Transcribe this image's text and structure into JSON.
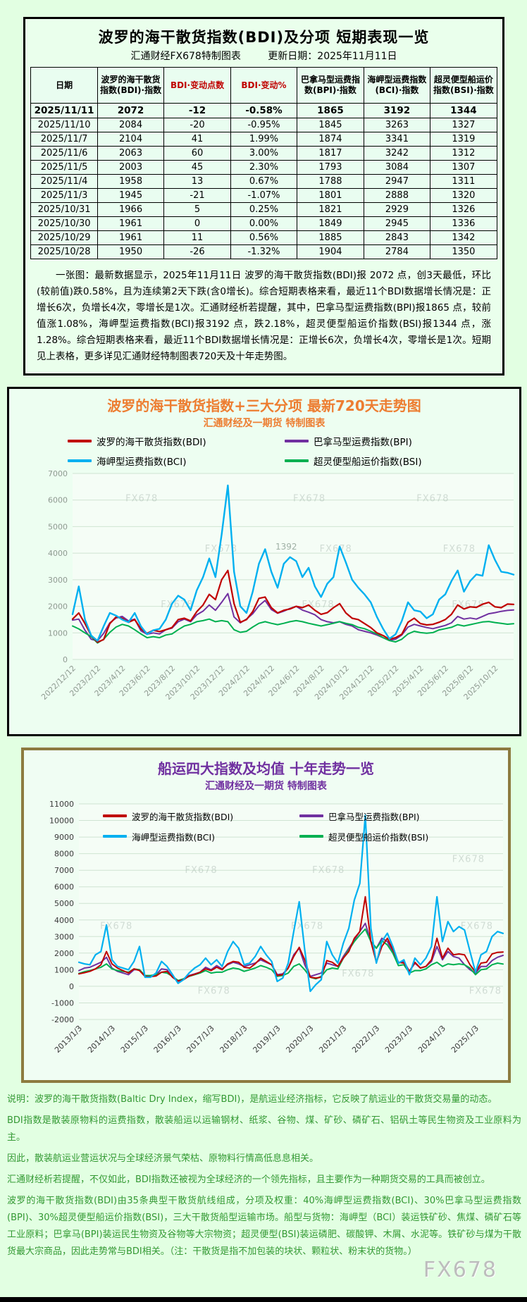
{
  "page": {
    "watermark": "FX678"
  },
  "colors": {
    "bdi": "#c00000",
    "bpi": "#7030a0",
    "bci": "#00b0f0",
    "bsi": "#00b050",
    "chart1_title": "#ed7d31",
    "chart2_title": "#7030a0",
    "note_text": "#339933",
    "header_highlight": "#86f7b9",
    "header_red": "#c00000"
  },
  "report": {
    "title": "波罗的海干散货指数(BDI)及分项 短期表现一览",
    "source": "汇通财经FX678特制图表",
    "update_date": "更新日期：2025年11月11日",
    "summary": "一张图：最新数据显示，2025年11月11日 波罗的海干散货指数(BDI)报 2072 点，创3天最低，环比(较前值)跌0.58%，且为连续第2天下跌(含0增长)。综合短期表格来看，最近11个BDI数据增长情况是：正增长6次，负增长4次，零增长是1次。汇通财经析若提醒，其中，巴拿马型运费指数(BPI)报1865 点，较前值涨1.08%，海岬型运费指数(BCI)报3192 点，跌2.18%，超灵便型船运价指数(BSI)报1344 点，涨1.28%。综合短期表格来看，最近11个BDI数据增长情况是：正增长6次，负增长4次，零增长是1次。短期见上表格，更多详见汇通财经特制图表720天及十年走势图。"
  },
  "table": {
    "columns": [
      "日期",
      "波罗的海干散货指数(BDI)·指数",
      "BDI·变动点数",
      "BDI·变动%",
      "巴拿马型运费指数(BPI)·指数",
      "海岬型运费指数(BCI)·指数",
      "超灵便型船运价指数(BSI)·指数"
    ],
    "rows": [
      [
        "2025/11/11",
        "2072",
        "-12",
        "-0.58%",
        "1865",
        "3192",
        "1344"
      ],
      [
        "2025/11/10",
        "2084",
        "-20",
        "-0.95%",
        "1845",
        "3263",
        "1327"
      ],
      [
        "2025/11/7",
        "2104",
        "41",
        "1.99%",
        "1874",
        "3341",
        "1319"
      ],
      [
        "2025/11/6",
        "2063",
        "60",
        "3.00%",
        "1817",
        "3242",
        "1312"
      ],
      [
        "2025/11/5",
        "2003",
        "45",
        "2.30%",
        "1793",
        "3084",
        "1307"
      ],
      [
        "2025/11/4",
        "1958",
        "13",
        "0.67%",
        "1788",
        "2947",
        "1311"
      ],
      [
        "2025/11/3",
        "1945",
        "-21",
        "-1.07%",
        "1801",
        "2888",
        "1320"
      ],
      [
        "2025/10/31",
        "1966",
        "5",
        "0.25%",
        "1821",
        "2929",
        "1326"
      ],
      [
        "2025/10/30",
        "1961",
        "0",
        "0.00%",
        "1849",
        "2945",
        "1336"
      ],
      [
        "2025/10/29",
        "1961",
        "11",
        "0.56%",
        "1885",
        "2843",
        "1342"
      ],
      [
        "2025/10/28",
        "1950",
        "-26",
        "-1.32%",
        "1904",
        "2784",
        "1350"
      ]
    ]
  },
  "notes": {
    "lines": [
      "说明：波罗的海干散货指数(Baltic Dry Index，缩写BDI)，是航运业经济指标，它反映了航运业的干散货交易量的动态。",
      "BDI指数是散装原物料的运费指数，散装船运以运输钢材、纸浆、谷物、煤、矿砂、磷矿石、铝矾土等民生物资及工业原料为主。",
      "因此，散装航运业营运状况与全球经济景气荣枯、原物料行情高低息息相关。",
      "汇通财经析若提醒，不仅如此，BDI指数还被视为全球经济的一个领先指标，且主要作为一种期货交易的工具而被创立。",
      "波罗的海干散货指数(BDI)由35条典型干散货航线组成，分项及权重：40%海岬型运费指数(BCI)、30%巴拿马型运费指数(BPI)、30%超灵便型船运价指数(BSI)，三大干散货船型运输市场。船型与货物：海岬型（BCI）装运铁矿砂、焦煤、磷矿石等工业原料；巴拿马(BPI)装运民生物资及谷物等大宗物资；超灵便型(BSI)装运磷肥、碳酸钾、木屑、水泥等。铁矿砂与煤为干散货最大宗商品，因此走势常与BDI相关。（注：干散货是指不加包装的块状、颗粒状、粉末状的货物。）"
    ]
  },
  "chart_data": [
    {
      "type": "line",
      "title": "波罗的海干散货指数+三大分项  最新720天走势图",
      "subtitle": "汇通财经及一期货 特制图表",
      "ylim": [
        0,
        7000
      ],
      "yticks": [
        0,
        1000,
        2000,
        3000,
        4000,
        5000,
        6000,
        7000
      ],
      "grid": true,
      "legend_position": "top",
      "tick_color": "#8f9a91",
      "x_labels": [
        "2022/12/12",
        "2023/2/12",
        "2023/4/12",
        "2023/6/12",
        "2023/8/12",
        "2023/10/12",
        "2023/12/12",
        "2024/2/12",
        "2024/4/12",
        "2024/6/12",
        "2024/8/12",
        "2024/10/12",
        "2024/12/12",
        "2025/2/12",
        "2025/4/12",
        "2025/6/12",
        "2025/8/12",
        "2025/10/12"
      ],
      "points_per_label": 4,
      "watermark": "FX678",
      "watermark_positions": [
        [
          0.12,
          0.15
        ],
        [
          0.5,
          0.15
        ],
        [
          0.78,
          0.15
        ],
        [
          0.3,
          0.42
        ],
        [
          0.56,
          0.42
        ],
        [
          0.84,
          0.42
        ],
        [
          0.2,
          0.72
        ],
        [
          0.52,
          0.72
        ],
        [
          0.86,
          0.72
        ]
      ],
      "annotations": [
        {
          "text": "1392",
          "fx": 0.46,
          "fy": 0.41
        }
      ],
      "draw_order": [
        1,
        3,
        0,
        2
      ],
      "series": [
        {
          "name": "波罗的海干散货指数(BDI)",
          "color": "#c00000",
          "width": 2.2,
          "values": [
            1520,
            1750,
            1350,
            900,
            650,
            750,
            1350,
            1600,
            1550,
            1400,
            1500,
            1150,
            980,
            1100,
            1050,
            1120,
            1200,
            1500,
            1550,
            1450,
            1800,
            2050,
            2450,
            2250,
            3000,
            3350,
            2100,
            1400,
            1500,
            1800,
            2300,
            2350,
            1950,
            1750,
            1850,
            1900,
            2000,
            1950,
            2050,
            1850,
            1700,
            1760,
            1950,
            2100,
            1750,
            1550,
            1500,
            1350,
            1200,
            1000,
            900,
            760,
            820,
            950,
            1400,
            1550,
            1350,
            1300,
            1320,
            1400,
            1500,
            1700,
            2050,
            1900,
            1980,
            1960,
            2080,
            2150,
            1980,
            1950,
            2084,
            2072
          ]
        },
        {
          "name": "巴拿马型运费指数(BPI)",
          "color": "#7030a0",
          "width": 2,
          "values": [
            1480,
            1520,
            1100,
            760,
            700,
            980,
            1380,
            1560,
            1620,
            1450,
            1520,
            1080,
            950,
            1000,
            960,
            1120,
            1180,
            1420,
            1520,
            1420,
            1680,
            1820,
            2050,
            1850,
            2150,
            2480,
            1600,
            1380,
            1520,
            1720,
            2020,
            2220,
            1880,
            1740,
            1820,
            1920,
            2000,
            1860,
            1780,
            1680,
            1500,
            1420,
            1380,
            1420,
            1320,
            1260,
            1120,
            1060,
            1000,
            920,
            820,
            720,
            760,
            920,
            1220,
            1320,
            1260,
            1200,
            1160,
            1220,
            1280,
            1380,
            1620,
            1520,
            1560,
            1520,
            1620,
            1720,
            1760,
            1810,
            1845,
            1865
          ]
        },
        {
          "name": "海岬型运费指数(BCI)",
          "color": "#00b0f0",
          "width": 2.4,
          "values": [
            1700,
            2750,
            1500,
            900,
            700,
            1250,
            1750,
            1650,
            1500,
            1400,
            1750,
            1250,
            950,
            1100,
            1150,
            1500,
            2100,
            2400,
            2250,
            1850,
            2600,
            3100,
            3800,
            3100,
            4700,
            6550,
            3300,
            2000,
            1750,
            2550,
            3600,
            4150,
            3300,
            2700,
            3600,
            3850,
            3700,
            3100,
            3450,
            2750,
            2350,
            2850,
            3100,
            4250,
            3650,
            3000,
            2700,
            2450,
            2150,
            1600,
            1150,
            780,
            950,
            1450,
            2150,
            1850,
            1800,
            1550,
            1700,
            2250,
            2450,
            2950,
            3350,
            2550,
            2950,
            3200,
            3150,
            4300,
            3750,
            3300,
            3263,
            3192
          ]
        },
        {
          "name": "超灵便型船运价指数(BSI)",
          "color": "#00b050",
          "width": 2,
          "values": [
            1260,
            1150,
            1000,
            860,
            620,
            760,
            1020,
            1220,
            1320,
            1260,
            1120,
            960,
            820,
            860,
            820,
            920,
            960,
            1120,
            1260,
            1320,
            1420,
            1460,
            1520,
            1420,
            1460,
            1420,
            1120,
            1020,
            1060,
            1220,
            1360,
            1420,
            1360,
            1310,
            1360,
            1420,
            1460,
            1420,
            1360,
            1310,
            1260,
            1310,
            1360,
            1420,
            1360,
            1310,
            1210,
            1160,
            1060,
            960,
            820,
            710,
            660,
            760,
            960,
            1060,
            1010,
            990,
            1010,
            1110,
            1160,
            1210,
            1310,
            1260,
            1310,
            1360,
            1410,
            1430,
            1390,
            1360,
            1327,
            1344
          ]
        }
      ]
    },
    {
      "type": "line",
      "title": "船运四大指数及均值 十年走势一览",
      "subtitle": "汇通财经及一期货 特制图表",
      "ylim": [
        -2000,
        11000
      ],
      "yticks": [
        -2000,
        -1000,
        0,
        1000,
        2000,
        3000,
        4000,
        5000,
        6000,
        7000,
        8000,
        9000,
        10000,
        11000
      ],
      "grid": true,
      "legend_position": "inside-top",
      "tick_color": "#3a3a3a",
      "x_labels": [
        "2013/1/3",
        "2014/1/3",
        "2015/1/3",
        "2016/1/3",
        "2017/1/3",
        "2018/1/3",
        "2019/1/3",
        "2020/1/3",
        "2021/1/3",
        "2022/1/3",
        "2023/1/3",
        "2024/1/3",
        "2025/1/3"
      ],
      "points_per_label": 6,
      "watermark": "FX678",
      "watermark_positions": [
        [
          0.25,
          0.32
        ],
        [
          0.55,
          0.32
        ],
        [
          0.88,
          0.27
        ],
        [
          0.05,
          0.58
        ],
        [
          0.5,
          0.58
        ],
        [
          0.9,
          0.58
        ],
        [
          0.28,
          0.88
        ],
        [
          0.62,
          0.8
        ],
        [
          0.92,
          0.88
        ]
      ],
      "annotations": [],
      "draw_order": [
        1,
        3,
        0,
        2
      ],
      "series": [
        {
          "name": "波罗的海干散货指数(BDI)",
          "color": "#c00000",
          "width": 2,
          "values": [
            750,
            820,
            900,
            1050,
            1300,
            2100,
            1350,
            1100,
            950,
            800,
            1050,
            950,
            600,
            580,
            620,
            850,
            900,
            550,
            320,
            400,
            620,
            720,
            850,
            1050,
            950,
            1150,
            1000,
            1350,
            1500,
            1450,
            1150,
            1100,
            1350,
            1700,
            1500,
            1300,
            650,
            700,
            1100,
            1800,
            2350,
            1600,
            550,
            500,
            550,
            1550,
            1450,
            1200,
            1700,
            2100,
            2900,
            3300,
            5400,
            2700,
            1450,
            2400,
            2900,
            2200,
            1450,
            1400,
            900,
            1450,
            1100,
            1200,
            1600,
            2900,
            1700,
            2300,
            1900,
            1950,
            1900,
            1300,
            850,
            1400,
            1450,
            1950,
            2050,
            2072
          ]
        },
        {
          "name": "巴拿马型运费指数(BPI)",
          "color": "#7030a0",
          "width": 2,
          "values": [
            950,
            1100,
            1150,
            1300,
            1450,
            1750,
            1100,
            900,
            800,
            700,
            1000,
            1000,
            600,
            620,
            700,
            1050,
            1000,
            550,
            300,
            450,
            650,
            750,
            850,
            1150,
            1000,
            1250,
            1050,
            1300,
            1450,
            1350,
            1200,
            1300,
            1400,
            1600,
            1450,
            1300,
            700,
            750,
            1100,
            1900,
            2300,
            1300,
            600,
            700,
            800,
            1400,
            1300,
            1200,
            1800,
            2300,
            2800,
            3300,
            3800,
            2700,
            2300,
            2900,
            2700,
            2100,
            1400,
            1500,
            900,
            1400,
            1100,
            1200,
            1500,
            2400,
            1600,
            2100,
            1800,
            1700,
            1300,
            1000,
            800,
            1200,
            1200,
            1550,
            1750,
            1865
          ]
        },
        {
          "name": "海岬型运费指数(BCI)",
          "color": "#00b0f0",
          "width": 2.2,
          "values": [
            1450,
            1350,
            1300,
            1900,
            2100,
            3700,
            1600,
            1200,
            1100,
            1000,
            1500,
            2400,
            550,
            550,
            800,
            1500,
            1200,
            700,
            180,
            400,
            800,
            1100,
            1300,
            1700,
            1300,
            1600,
            1200,
            2100,
            2700,
            2300,
            1300,
            1400,
            1800,
            2400,
            1900,
            1500,
            300,
            500,
            1400,
            3300,
            5100,
            2200,
            -300,
            100,
            400,
            2700,
            1900,
            1400,
            2600,
            3500,
            5200,
            6200,
            10300,
            3500,
            1400,
            2700,
            3200,
            2400,
            1400,
            1600,
            700,
            1700,
            1300,
            1700,
            2400,
            5400,
            2700,
            3900,
            3300,
            3600,
            3400,
            2100,
            850,
            1900,
            2100,
            3000,
            3300,
            3192
          ]
        },
        {
          "name": "超灵便型船运价指数(BSI)",
          "color": "#00b050",
          "width": 2,
          "values": [
            780,
            880,
            950,
            1050,
            1150,
            1350,
            1050,
            950,
            900,
            850,
            1050,
            1000,
            650,
            650,
            700,
            850,
            800,
            600,
            350,
            450,
            600,
            700,
            800,
            950,
            800,
            850,
            850,
            1000,
            1100,
            1050,
            900,
            1000,
            1100,
            1250,
            1150,
            1000,
            600,
            650,
            800,
            1200,
            1350,
            1000,
            550,
            450,
            600,
            1000,
            1100,
            1050,
            1700,
            2200,
            2700,
            3100,
            3450,
            2700,
            2300,
            2750,
            2500,
            2000,
            1250,
            1300,
            800,
            950,
            950,
            1050,
            1300,
            1450,
            1200,
            1350,
            1300,
            1350,
            1300,
            1100,
            700,
            1000,
            1050,
            1300,
            1400,
            1344
          ]
        }
      ]
    }
  ]
}
